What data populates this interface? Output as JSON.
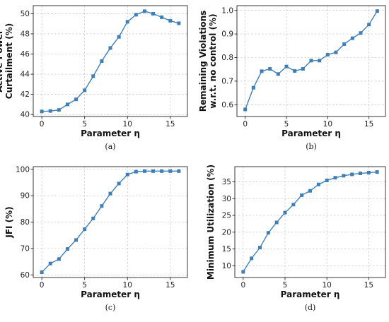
{
  "chart_data": [
    {
      "id": "a",
      "type": "line",
      "caption": "(a)",
      "xlabel": "Parameter η",
      "ylabel": [
        "Active Power",
        "Curtailment (%)"
      ],
      "xlim": [
        -1,
        17
      ],
      "ylim": [
        39.8,
        50.8
      ],
      "xticks": [
        0,
        5,
        10,
        15
      ],
      "yticks": [
        40,
        42,
        44,
        46,
        48,
        50
      ],
      "ytick_decimals": 0,
      "grid": true,
      "series": [
        {
          "marker": "square",
          "color": "#3f7fb7",
          "x": [
            0,
            1,
            2,
            3,
            4,
            5,
            6,
            7,
            8,
            9,
            10,
            11,
            12,
            13,
            14,
            15,
            16
          ],
          "y": [
            40.3,
            40.35,
            40.45,
            41.0,
            41.5,
            42.4,
            43.8,
            45.3,
            46.6,
            47.7,
            49.2,
            49.9,
            50.25,
            50.0,
            49.65,
            49.3,
            49.05
          ]
        }
      ]
    },
    {
      "id": "b",
      "type": "line",
      "caption": "(b)",
      "xlabel": "Parameter η",
      "ylabel": [
        "Remaining Violations",
        "w.r.t. no control (%)"
      ],
      "xlim": [
        -1,
        17
      ],
      "ylim": [
        0.55,
        1.02
      ],
      "xticks": [
        0,
        5,
        10,
        15
      ],
      "yticks": [
        0.6,
        0.7,
        0.8,
        0.9,
        1.0
      ],
      "ytick_decimals": 1,
      "grid": true,
      "series": [
        {
          "marker": "square",
          "color": "#3f7fb7",
          "x": [
            0,
            1,
            2,
            3,
            4,
            5,
            6,
            7,
            8,
            9,
            10,
            11,
            12,
            13,
            14,
            15,
            16
          ],
          "y": [
            0.58,
            0.672,
            0.742,
            0.752,
            0.73,
            0.762,
            0.743,
            0.752,
            0.787,
            0.787,
            0.812,
            0.822,
            0.857,
            0.882,
            0.904,
            0.94,
            0.997
          ]
        }
      ]
    },
    {
      "id": "c",
      "type": "line",
      "caption": "(c)",
      "xlabel": "Parameter η",
      "ylabel": [
        "JFI (%)"
      ],
      "xlim": [
        -1,
        17
      ],
      "ylim": [
        59,
        101
      ],
      "xticks": [
        0,
        5,
        10,
        15
      ],
      "yticks": [
        60,
        70,
        80,
        90,
        100
      ],
      "ytick_decimals": 0,
      "grid": true,
      "series": [
        {
          "marker": "square",
          "color": "#3f7fb7",
          "x": [
            0,
            1,
            2,
            3,
            4,
            5,
            6,
            7,
            8,
            9,
            10,
            11,
            12,
            13,
            14,
            15,
            16
          ],
          "y": [
            61,
            64.3,
            66,
            69.8,
            73.2,
            77.3,
            81.4,
            86.1,
            90.8,
            94.6,
            98.0,
            99.1,
            99.3,
            99.3,
            99.3,
            99.3,
            99.3
          ]
        }
      ]
    },
    {
      "id": "d",
      "type": "line",
      "caption": "(d)",
      "xlabel": "Parameter η",
      "ylabel": [
        "Minimum Utilization (%)"
      ],
      "xlim": [
        -1,
        17
      ],
      "ylim": [
        6.5,
        39.5
      ],
      "xticks": [
        0,
        5,
        10,
        15
      ],
      "yticks": [
        10,
        15,
        20,
        25,
        30,
        35
      ],
      "ytick_decimals": 0,
      "grid": true,
      "series": [
        {
          "marker": "square",
          "color": "#3f7fb7",
          "x": [
            0,
            1,
            2,
            3,
            4,
            5,
            6,
            7,
            8,
            9,
            10,
            11,
            12,
            13,
            14,
            15,
            16
          ],
          "y": [
            8.2,
            12.2,
            15.4,
            19.8,
            22.9,
            25.8,
            28.2,
            31.0,
            32.3,
            34.2,
            35.4,
            36.2,
            36.8,
            37.2,
            37.5,
            37.7,
            37.9
          ]
        }
      ]
    }
  ]
}
